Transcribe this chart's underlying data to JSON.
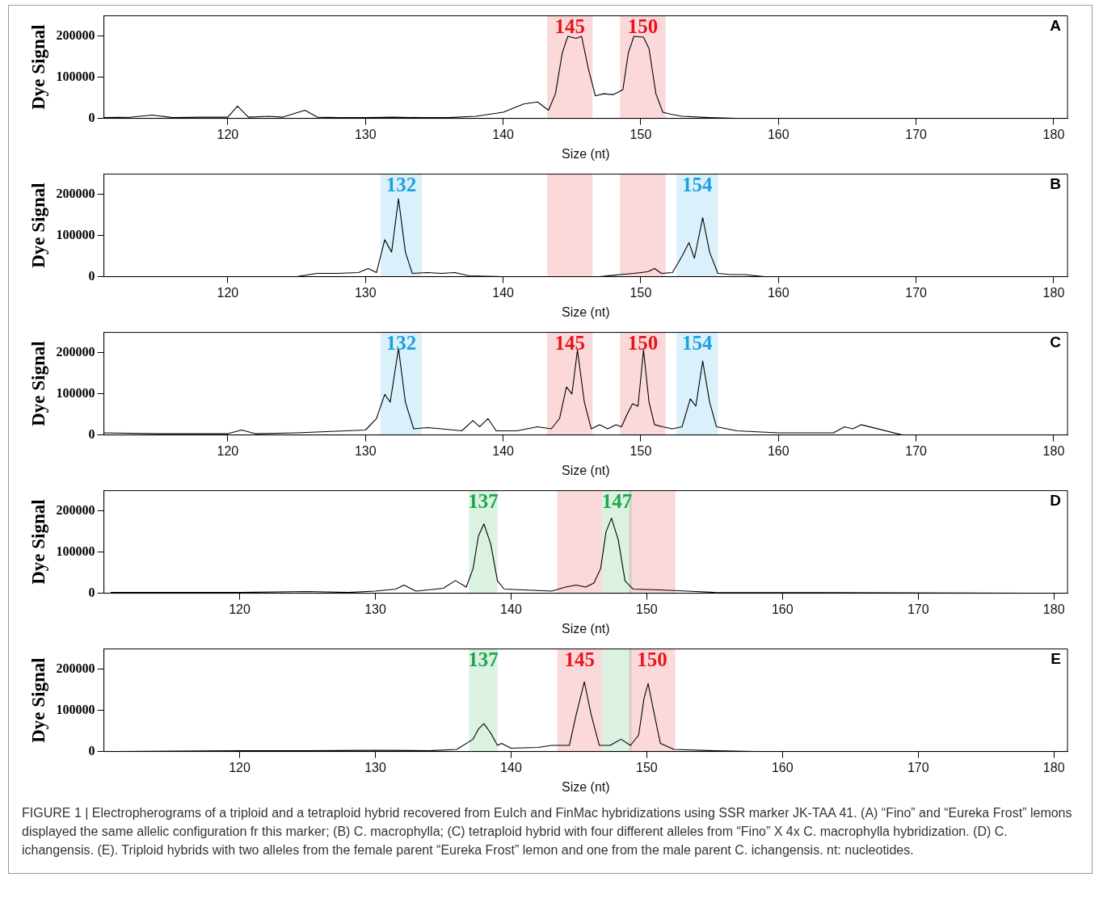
{
  "chart_data": [
    {
      "type": "line",
      "xlabel": "Size (nt)",
      "ylabel": "Dye Signal",
      "annotations": [
        "A"
      ],
      "xlim": [
        111,
        181
      ],
      "ylim": [
        0,
        250000
      ],
      "xticks": [
        120,
        130,
        140,
        150,
        160,
        170,
        180
      ],
      "yticks": [
        0,
        100000,
        200000
      ],
      "grid": false,
      "legend": false,
      "marker": "none",
      "series": [
        {
          "color": "#000000",
          "x": [
            111,
            113,
            114.5,
            116,
            118,
            120,
            120.7,
            121.5,
            123,
            124,
            125.6,
            126.5,
            128,
            130,
            132,
            134,
            136,
            138,
            140,
            141.5,
            142.5,
            143.3,
            143.8,
            144.3,
            144.7,
            145.3,
            145.7,
            146.2,
            146.7,
            147.3,
            148,
            148.7,
            149.1,
            149.5,
            150.2,
            150.6,
            151.1,
            151.6,
            152.2,
            153,
            155,
            157
          ],
          "values": [
            2000,
            3000,
            8000,
            2000,
            3000,
            3000,
            30000,
            3000,
            5000,
            3000,
            20000,
            3000,
            2000,
            2000,
            3000,
            2000,
            2000,
            5000,
            15000,
            35000,
            40000,
            20000,
            60000,
            160000,
            200000,
            195000,
            200000,
            120000,
            55000,
            60000,
            58000,
            70000,
            160000,
            200000,
            198000,
            170000,
            60000,
            15000,
            10000,
            5000,
            2000,
            0
          ]
        }
      ],
      "bands": [
        {
          "axis": "x",
          "from": 143.2,
          "to": 146.5,
          "label": "145",
          "color": "#e8141b"
        },
        {
          "axis": "x",
          "from": 148.5,
          "to": 151.8,
          "label": "150",
          "color": "#e8141b"
        }
      ]
    },
    {
      "type": "line",
      "xlabel": "Size (nt)",
      "ylabel": "Dye Signal",
      "annotations": [
        "B"
      ],
      "xlim": [
        111,
        181
      ],
      "ylim": [
        0,
        250000
      ],
      "xticks": [
        120,
        130,
        140,
        150,
        160,
        170,
        180
      ],
      "yticks": [
        0,
        100000,
        200000
      ],
      "grid": false,
      "legend": false,
      "marker": "none",
      "series": [
        {
          "color": "#000000",
          "x": [
            112,
            125,
            126.5,
            128,
            129.5,
            130.2,
            130.8,
            131.4,
            131.9,
            132.4,
            132.9,
            133.4,
            134.5,
            135.5,
            136.5,
            137.5,
            140,
            147,
            148.5,
            149.5,
            150.5,
            151,
            151.5,
            152.3,
            153,
            153.5,
            153.9,
            154.5,
            155,
            155.6,
            156.5,
            157.5,
            159
          ],
          "values": [
            0,
            0,
            8000,
            8000,
            10000,
            20000,
            10000,
            90000,
            60000,
            190000,
            60000,
            8000,
            10000,
            8000,
            10000,
            2000,
            0,
            0,
            5000,
            8000,
            12000,
            20000,
            8000,
            10000,
            50000,
            83000,
            45000,
            144000,
            60000,
            8000,
            5000,
            5000,
            0
          ]
        }
      ],
      "bands": [
        {
          "axis": "x",
          "from": 131.1,
          "to": 134.1,
          "label": "132",
          "color": "#1aa1e0"
        },
        {
          "axis": "x",
          "from": 143.2,
          "to": 146.5,
          "color": "#e8141b"
        },
        {
          "axis": "x",
          "from": 148.5,
          "to": 151.8,
          "color": "#e8141b"
        },
        {
          "axis": "x",
          "from": 152.6,
          "to": 155.6,
          "label": "154",
          "color": "#1aa1e0"
        }
      ]
    },
    {
      "type": "line",
      "xlabel": "Size (nt)",
      "ylabel": "Dye Signal",
      "annotations": [
        "C"
      ],
      "xlim": [
        111,
        181
      ],
      "ylim": [
        0,
        250000
      ],
      "xticks": [
        120,
        130,
        140,
        150,
        160,
        170,
        180
      ],
      "yticks": [
        0,
        100000,
        200000
      ],
      "grid": false,
      "legend": false,
      "marker": "none",
      "series": [
        {
          "color": "#000000",
          "x": [
            111,
            115,
            120,
            121,
            122,
            125,
            130,
            130.8,
            131.4,
            131.8,
            132.4,
            132.9,
            133.5,
            134.5,
            135.5,
            137,
            137.8,
            138.3,
            138.9,
            139.5,
            141,
            142.5,
            143.5,
            144.1,
            144.6,
            145,
            145.4,
            145.9,
            146.4,
            147,
            147.6,
            148.2,
            148.6,
            149,
            149.4,
            149.8,
            150.2,
            150.6,
            151,
            151.6,
            152.3,
            153,
            153.6,
            154,
            154.5,
            155,
            155.5,
            157,
            160,
            164,
            164.8,
            165.4,
            166,
            169
          ],
          "values": [
            5000,
            3000,
            3000,
            12000,
            3000,
            5000,
            12000,
            40000,
            99000,
            80000,
            211000,
            80000,
            15000,
            18000,
            15000,
            10000,
            35000,
            20000,
            40000,
            10000,
            10000,
            20000,
            15000,
            40000,
            117000,
            100000,
            207000,
            80000,
            15000,
            25000,
            15000,
            25000,
            20000,
            50000,
            76000,
            70000,
            207000,
            80000,
            25000,
            20000,
            15000,
            20000,
            88000,
            70000,
            180000,
            80000,
            20000,
            10000,
            5000,
            5000,
            20000,
            15000,
            25000,
            0
          ]
        }
      ],
      "bands": [
        {
          "axis": "x",
          "from": 131.1,
          "to": 134.1,
          "label": "132",
          "color": "#1aa1e0"
        },
        {
          "axis": "x",
          "from": 143.2,
          "to": 146.5,
          "label": "145",
          "color": "#e8141b"
        },
        {
          "axis": "x",
          "from": 148.5,
          "to": 151.8,
          "label": "150",
          "color": "#e8141b"
        },
        {
          "axis": "x",
          "from": 152.6,
          "to": 155.6,
          "label": "154",
          "color": "#1aa1e0"
        }
      ]
    },
    {
      "type": "line",
      "xlabel": "Size (nt)",
      "ylabel": "Dye Signal",
      "annotations": [
        "D"
      ],
      "xlim": [
        110,
        181
      ],
      "ylim": [
        0,
        250000
      ],
      "xticks": [
        120,
        130,
        140,
        150,
        160,
        170,
        180
      ],
      "yticks": [
        0,
        100000,
        200000
      ],
      "grid": false,
      "legend": false,
      "marker": "none",
      "series": [
        {
          "color": "#000000",
          "x": [
            110.5,
            120,
            125,
            128,
            130,
            131.5,
            132.1,
            133,
            135,
            135.9,
            136.7,
            137.2,
            137.6,
            138.0,
            138.5,
            139,
            139.5,
            141,
            143,
            144,
            144.8,
            145.5,
            146.1,
            146.6,
            147,
            147.4,
            147.9,
            148.4,
            149,
            151,
            153,
            155,
            181
          ],
          "values": [
            2000,
            2000,
            4000,
            2000,
            5000,
            10000,
            20000,
            5000,
            12000,
            31000,
            15000,
            60000,
            140000,
            169000,
            120000,
            30000,
            10000,
            8000,
            5000,
            15000,
            20000,
            15000,
            25000,
            60000,
            150000,
            183000,
            130000,
            30000,
            10000,
            8000,
            5000,
            2000,
            0
          ]
        }
      ],
      "bands": [
        {
          "axis": "x",
          "from": 136.9,
          "to": 139.0,
          "label": "137",
          "color": "#1fa64a"
        },
        {
          "axis": "x",
          "from": 143.4,
          "to": 146.7,
          "color": "#e8141b"
        },
        {
          "axis": "x",
          "from": 148.7,
          "to": 152.1,
          "color": "#e8141b"
        },
        {
          "axis": "x",
          "from": 146.7,
          "to": 148.9,
          "label": "147",
          "color": "#1fa64a"
        }
      ]
    },
    {
      "type": "line",
      "xlabel": "Size (nt)",
      "ylabel": "Dye Signal",
      "annotations": [
        "E",
        "FIGURE 1 | Electropherograms of a triploid and a tetraploid hybrid recovered from EuIch and FinMac hybridizations using SSR marker JK-TAA 41. (A) “Fino” and “Eureka Frost” lemons displayed the same allelic configuration fr this marker; (B) C. macrophylla; (C) tetraploid hybrid with four different alleles from “Fino” X 4x C. macrophylla hybridization. (D) C. ichangensis. (E). Triploid hybrids with two alleles from the female parent “Eureka Frost” lemon and one from the male parent C. ichangensis. nt: nucleotides."
      ],
      "xlim": [
        110,
        181
      ],
      "ylim": [
        0,
        250000
      ],
      "xticks": [
        120,
        130,
        140,
        150,
        160,
        170,
        180
      ],
      "yticks": [
        0,
        100000,
        200000
      ],
      "grid": false,
      "legend": false,
      "marker": "none",
      "series": [
        {
          "color": "#000000",
          "x": [
            111,
            120,
            125,
            130,
            134,
            136,
            137.2,
            137.6,
            138.0,
            138.5,
            139,
            139.3,
            140,
            142,
            143,
            144.3,
            144.8,
            145.4,
            145.9,
            146.5,
            147.3,
            148.1,
            148.8,
            149.4,
            149.8,
            150.1,
            150.5,
            151,
            152,
            155,
            158
          ],
          "values": [
            0,
            2000,
            2000,
            3000,
            2000,
            5000,
            30000,
            55000,
            68000,
            45000,
            15000,
            20000,
            8000,
            10000,
            15000,
            15000,
            90000,
            170000,
            90000,
            15000,
            15000,
            30000,
            15000,
            40000,
            130000,
            166000,
            100000,
            20000,
            5000,
            2000,
            0
          ]
        }
      ],
      "bands": [
        {
          "axis": "x",
          "from": 136.9,
          "to": 139.0,
          "label": "137",
          "color": "#1fa64a"
        },
        {
          "axis": "x",
          "from": 143.4,
          "to": 146.7,
          "label": "145",
          "color": "#e8141b"
        },
        {
          "axis": "x",
          "from": 146.7,
          "to": 148.9,
          "color": "#1fa64a"
        },
        {
          "axis": "x",
          "from": 148.7,
          "to": 152.1,
          "label": "150",
          "color": "#e8141b"
        }
      ]
    }
  ]
}
